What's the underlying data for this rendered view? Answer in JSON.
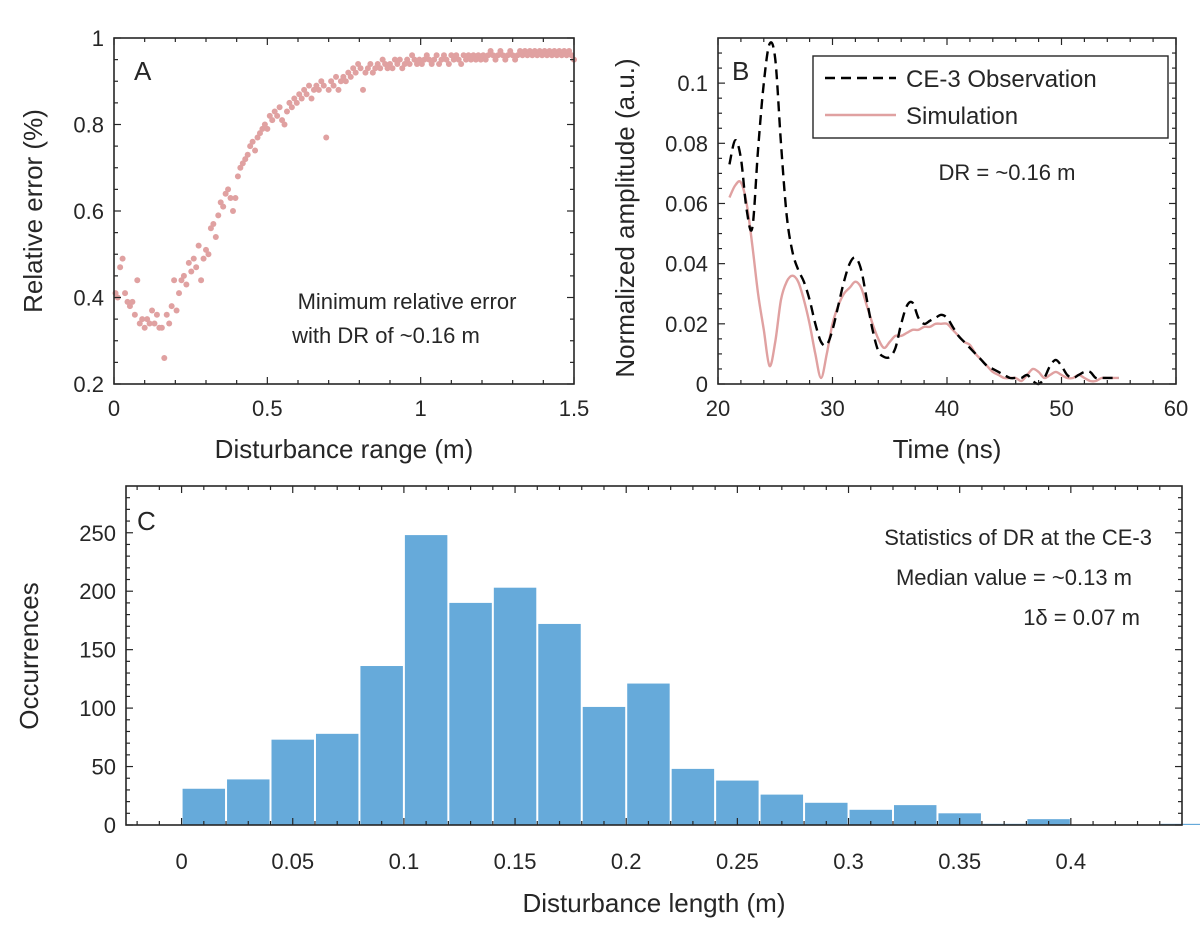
{
  "chart_data": [
    {
      "type": "scatter",
      "panel_label": "A",
      "xlabel": "Disturbance range (m)",
      "ylabel": "Relative error (%)",
      "xlim": [
        0,
        1.5
      ],
      "ylim": [
        0.2,
        1.0
      ],
      "xticks": [
        "0",
        "0.5",
        "1",
        "1.5"
      ],
      "yticks": [
        "0.2",
        "0.4",
        "0.6",
        "0.8",
        "1"
      ],
      "annotation": [
        "Minimum relative error",
        "with DR of ~0.16 m"
      ],
      "marker_color": "#E0A1A1",
      "annotation_color": "#0000FF",
      "points": [
        [
          0.005,
          0.41
        ],
        [
          0.012,
          0.4
        ],
        [
          0.02,
          0.47
        ],
        [
          0.028,
          0.49
        ],
        [
          0.036,
          0.41
        ],
        [
          0.044,
          0.39
        ],
        [
          0.052,
          0.38
        ],
        [
          0.06,
          0.39
        ],
        [
          0.068,
          0.36
        ],
        [
          0.076,
          0.44
        ],
        [
          0.084,
          0.34
        ],
        [
          0.092,
          0.35
        ],
        [
          0.1,
          0.33
        ],
        [
          0.108,
          0.35
        ],
        [
          0.116,
          0.34
        ],
        [
          0.124,
          0.37
        ],
        [
          0.132,
          0.34
        ],
        [
          0.14,
          0.36
        ],
        [
          0.148,
          0.33
        ],
        [
          0.156,
          0.33
        ],
        [
          0.164,
          0.26
        ],
        [
          0.172,
          0.36
        ],
        [
          0.18,
          0.34
        ],
        [
          0.188,
          0.38
        ],
        [
          0.196,
          0.44
        ],
        [
          0.204,
          0.37
        ],
        [
          0.212,
          0.41
        ],
        [
          0.22,
          0.44
        ],
        [
          0.228,
          0.45
        ],
        [
          0.236,
          0.43
        ],
        [
          0.244,
          0.48
        ],
        [
          0.252,
          0.46
        ],
        [
          0.26,
          0.49
        ],
        [
          0.268,
          0.47
        ],
        [
          0.276,
          0.52
        ],
        [
          0.284,
          0.44
        ],
        [
          0.292,
          0.49
        ],
        [
          0.3,
          0.51
        ],
        [
          0.308,
          0.5
        ],
        [
          0.316,
          0.56
        ],
        [
          0.324,
          0.57
        ],
        [
          0.332,
          0.54
        ],
        [
          0.34,
          0.59
        ],
        [
          0.348,
          0.62
        ],
        [
          0.356,
          0.61
        ],
        [
          0.364,
          0.64
        ],
        [
          0.372,
          0.65
        ],
        [
          0.38,
          0.63
        ],
        [
          0.388,
          0.6
        ],
        [
          0.396,
          0.63
        ],
        [
          0.404,
          0.68
        ],
        [
          0.412,
          0.7
        ],
        [
          0.42,
          0.71
        ],
        [
          0.428,
          0.72
        ],
        [
          0.436,
          0.73
        ],
        [
          0.444,
          0.75
        ],
        [
          0.452,
          0.76
        ],
        [
          0.46,
          0.74
        ],
        [
          0.468,
          0.77
        ],
        [
          0.476,
          0.78
        ],
        [
          0.484,
          0.79
        ],
        [
          0.492,
          0.8
        ],
        [
          0.5,
          0.79
        ],
        [
          0.508,
          0.82
        ],
        [
          0.516,
          0.81
        ],
        [
          0.524,
          0.83
        ],
        [
          0.532,
          0.82
        ],
        [
          0.54,
          0.84
        ],
        [
          0.548,
          0.81
        ],
        [
          0.556,
          0.8
        ],
        [
          0.564,
          0.83
        ],
        [
          0.572,
          0.85
        ],
        [
          0.58,
          0.84
        ],
        [
          0.588,
          0.86
        ],
        [
          0.596,
          0.85
        ],
        [
          0.604,
          0.87
        ],
        [
          0.612,
          0.86
        ],
        [
          0.62,
          0.88
        ],
        [
          0.628,
          0.87
        ],
        [
          0.636,
          0.89
        ],
        [
          0.644,
          0.86
        ],
        [
          0.652,
          0.88
        ],
        [
          0.66,
          0.89
        ],
        [
          0.668,
          0.88
        ],
        [
          0.676,
          0.9
        ],
        [
          0.684,
          0.89
        ],
        [
          0.692,
          0.77
        ],
        [
          0.7,
          0.88
        ],
        [
          0.708,
          0.9
        ],
        [
          0.716,
          0.89
        ],
        [
          0.724,
          0.91
        ],
        [
          0.732,
          0.88
        ],
        [
          0.74,
          0.9
        ],
        [
          0.748,
          0.91
        ],
        [
          0.756,
          0.9
        ],
        [
          0.764,
          0.92
        ],
        [
          0.772,
          0.91
        ],
        [
          0.78,
          0.93
        ],
        [
          0.788,
          0.92
        ],
        [
          0.796,
          0.94
        ],
        [
          0.804,
          0.93
        ],
        [
          0.812,
          0.88
        ],
        [
          0.82,
          0.92
        ],
        [
          0.828,
          0.93
        ],
        [
          0.836,
          0.94
        ],
        [
          0.844,
          0.92
        ],
        [
          0.852,
          0.93
        ],
        [
          0.86,
          0.94
        ],
        [
          0.868,
          0.93
        ],
        [
          0.876,
          0.95
        ],
        [
          0.884,
          0.94
        ],
        [
          0.892,
          0.93
        ],
        [
          0.9,
          0.94
        ],
        [
          0.908,
          0.93
        ],
        [
          0.916,
          0.95
        ],
        [
          0.924,
          0.94
        ],
        [
          0.932,
          0.95
        ],
        [
          0.94,
          0.93
        ],
        [
          0.948,
          0.94
        ],
        [
          0.956,
          0.95
        ],
        [
          0.964,
          0.94
        ],
        [
          0.972,
          0.96
        ],
        [
          0.98,
          0.95
        ],
        [
          0.988,
          0.94
        ],
        [
          0.996,
          0.95
        ],
        [
          1.004,
          0.94
        ],
        [
          1.012,
          0.95
        ],
        [
          1.02,
          0.96
        ],
        [
          1.028,
          0.95
        ],
        [
          1.036,
          0.94
        ],
        [
          1.044,
          0.95
        ],
        [
          1.052,
          0.96
        ],
        [
          1.06,
          0.94
        ],
        [
          1.068,
          0.95
        ],
        [
          1.076,
          0.96
        ],
        [
          1.084,
          0.95
        ],
        [
          1.092,
          0.94
        ],
        [
          1.1,
          0.96
        ],
        [
          1.108,
          0.95
        ],
        [
          1.116,
          0.96
        ],
        [
          1.124,
          0.95
        ],
        [
          1.132,
          0.94
        ],
        [
          1.14,
          0.96
        ],
        [
          1.148,
          0.95
        ],
        [
          1.156,
          0.96
        ],
        [
          1.164,
          0.95
        ],
        [
          1.172,
          0.96
        ],
        [
          1.18,
          0.95
        ],
        [
          1.188,
          0.96
        ],
        [
          1.196,
          0.95
        ],
        [
          1.204,
          0.96
        ],
        [
          1.212,
          0.95
        ],
        [
          1.22,
          0.96
        ],
        [
          1.228,
          0.97
        ],
        [
          1.236,
          0.96
        ],
        [
          1.244,
          0.95
        ],
        [
          1.252,
          0.96
        ],
        [
          1.26,
          0.97
        ],
        [
          1.268,
          0.96
        ],
        [
          1.276,
          0.95
        ],
        [
          1.284,
          0.96
        ],
        [
          1.292,
          0.97
        ],
        [
          1.3,
          0.96
        ],
        [
          1.308,
          0.95
        ],
        [
          1.316,
          0.96
        ],
        [
          1.324,
          0.97
        ],
        [
          1.332,
          0.96
        ],
        [
          1.34,
          0.97
        ],
        [
          1.348,
          0.96
        ],
        [
          1.356,
          0.97
        ],
        [
          1.364,
          0.96
        ],
        [
          1.372,
          0.97
        ],
        [
          1.38,
          0.96
        ],
        [
          1.388,
          0.97
        ],
        [
          1.396,
          0.96
        ],
        [
          1.404,
          0.97
        ],
        [
          1.412,
          0.96
        ],
        [
          1.42,
          0.97
        ],
        [
          1.428,
          0.96
        ],
        [
          1.436,
          0.97
        ],
        [
          1.444,
          0.96
        ],
        [
          1.452,
          0.97
        ],
        [
          1.46,
          0.96
        ],
        [
          1.468,
          0.97
        ],
        [
          1.476,
          0.96
        ],
        [
          1.484,
          0.97
        ],
        [
          1.492,
          0.96
        ],
        [
          1.5,
          0.95
        ]
      ]
    },
    {
      "type": "line",
      "panel_label": "B",
      "xlabel": "Time (ns)",
      "ylabel": "Normalized amplitude (a.u.)",
      "xlim": [
        20,
        60
      ],
      "ylim": [
        0,
        0.115
      ],
      "xticks": [
        "20",
        "30",
        "40",
        "50",
        "60"
      ],
      "yticks": [
        "0",
        "0.02",
        "0.04",
        "0.06",
        "0.08",
        "0.1"
      ],
      "annotation": "DR = ~0.16 m",
      "annotation_color": "#0000FF",
      "legend_position": "top-right",
      "series": [
        {
          "name": "CE-3 Observation",
          "color": "#000000",
          "dash": "dashed",
          "x": [
            21,
            21.5,
            22,
            22.5,
            23,
            23.5,
            24,
            24.5,
            25,
            25.5,
            26,
            26.5,
            27,
            27.5,
            28,
            28.5,
            29,
            29.5,
            30,
            30.5,
            31,
            31.5,
            32,
            32.5,
            33,
            33.5,
            34,
            34.5,
            35,
            35.5,
            36,
            36.5,
            37,
            37.5,
            38,
            38.5,
            39,
            39.5,
            40,
            40.5,
            41,
            41.5,
            42,
            42.5,
            43,
            43.5,
            44,
            44.5,
            45,
            45.5,
            46,
            46.5,
            47,
            47.5,
            48,
            48.5,
            49,
            49.5,
            50,
            50.5,
            51,
            51.5,
            52,
            52.5,
            53,
            53.5,
            54,
            54.5,
            55
          ],
          "y": [
            0.073,
            0.081,
            0.075,
            0.058,
            0.052,
            0.078,
            0.1,
            0.113,
            0.108,
            0.08,
            0.056,
            0.044,
            0.038,
            0.034,
            0.028,
            0.02,
            0.014,
            0.013,
            0.018,
            0.026,
            0.034,
            0.04,
            0.042,
            0.038,
            0.028,
            0.018,
            0.011,
            0.009,
            0.009,
            0.012,
            0.02,
            0.026,
            0.027,
            0.022,
            0.02,
            0.021,
            0.022,
            0.023,
            0.022,
            0.019,
            0.016,
            0.014,
            0.012,
            0.01,
            0.008,
            0.006,
            0.005,
            0.004,
            0.003,
            0.002,
            0.002,
            0.002,
            0.003,
            0.001,
            0.0,
            0.002,
            0.006,
            0.008,
            0.006,
            0.003,
            0.002,
            0.003,
            0.004,
            0.004,
            0.002,
            0.002,
            0.002,
            0.002,
            0.002
          ]
        },
        {
          "name": "Simulation",
          "color": "#E0A1A1",
          "dash": "solid",
          "x": [
            21,
            21.5,
            22,
            22.5,
            23,
            23.5,
            24,
            24.5,
            25,
            25.5,
            26,
            26.5,
            27,
            27.5,
            28,
            28.5,
            29,
            29.5,
            30,
            30.5,
            31,
            31.5,
            32,
            32.5,
            33,
            33.5,
            34,
            34.5,
            35,
            35.5,
            36,
            36.5,
            37,
            37.5,
            38,
            38.5,
            39,
            39.5,
            40,
            40.5,
            41,
            41.5,
            42,
            42.5,
            43,
            43.5,
            44,
            44.5,
            45,
            45.5,
            46,
            46.5,
            47,
            47.5,
            48,
            48.5,
            49,
            49.5,
            50,
            50.5,
            51,
            51.5,
            52,
            52.5,
            53,
            53.5,
            54,
            54.5,
            55
          ],
          "y": [
            0.062,
            0.066,
            0.067,
            0.06,
            0.046,
            0.03,
            0.018,
            0.006,
            0.014,
            0.028,
            0.034,
            0.036,
            0.034,
            0.028,
            0.02,
            0.01,
            0.002,
            0.01,
            0.02,
            0.026,
            0.03,
            0.032,
            0.034,
            0.032,
            0.026,
            0.02,
            0.015,
            0.012,
            0.014,
            0.016,
            0.016,
            0.017,
            0.018,
            0.018,
            0.019,
            0.019,
            0.02,
            0.02,
            0.02,
            0.018,
            0.016,
            0.014,
            0.013,
            0.01,
            0.008,
            0.006,
            0.004,
            0.003,
            0.002,
            0.002,
            0.002,
            0.001,
            0.003,
            0.005,
            0.004,
            0.002,
            0.003,
            0.004,
            0.003,
            0.002,
            0.002,
            0.003,
            0.002,
            0.001,
            0.001,
            0.002,
            0.002,
            0.002,
            0.002
          ]
        }
      ]
    },
    {
      "type": "bar",
      "panel_label": "C",
      "xlabel": "Disturbance length (m)",
      "ylabel": "Occurrences",
      "xlim": [
        -0.025,
        0.45
      ],
      "ylim": [
        0,
        290
      ],
      "xticks": [
        "0",
        "0.05",
        "0.1",
        "0.15",
        "0.2",
        "0.25",
        "0.3",
        "0.35",
        "0.4"
      ],
      "yticks": [
        "0",
        "50",
        "100",
        "150",
        "200",
        "250"
      ],
      "bin_width": 0.02,
      "bin_starts": [
        0,
        0.02,
        0.04,
        0.06,
        0.08,
        0.1,
        0.12,
        0.14,
        0.16,
        0.18,
        0.2,
        0.22,
        0.24,
        0.26,
        0.28,
        0.3,
        0.32,
        0.34,
        0.36,
        0.38,
        0.4,
        0.42,
        0.44
      ],
      "values": [
        31,
        39,
        73,
        78,
        136,
        248,
        190,
        203,
        172,
        101,
        121,
        48,
        38,
        26,
        19,
        13,
        17,
        10,
        1,
        5,
        0,
        0,
        1
      ],
      "bar_color": "#66AADA",
      "annotation": [
        "Statistics of DR at the CE-3",
        "Median value = ~0.13 m",
        "1δ = 0.07 m"
      ],
      "annotation_color": "#0000FF"
    }
  ]
}
